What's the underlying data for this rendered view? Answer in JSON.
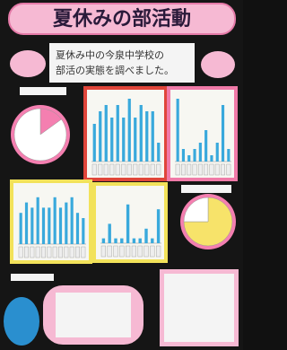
{
  "header": {
    "title": "夏休みの部活動",
    "subtitle_lines": [
      "夏休み中の今泉中学校の",
      "部活の実態を調べました。"
    ]
  },
  "chart_data": [
    {
      "type": "pie",
      "categories": [
        null,
        null
      ],
      "values": [
        15,
        85
      ],
      "colors": [
        "#f47fb0",
        "#ffffff"
      ]
    },
    {
      "type": "bar",
      "categories": [
        null,
        null,
        null,
        null,
        null,
        null,
        null,
        null,
        null,
        null,
        null,
        null
      ],
      "values": [
        6,
        8,
        9,
        7,
        9,
        7,
        10,
        7,
        9,
        8,
        8,
        3
      ],
      "color": "#39a9dc",
      "ylim": [
        0,
        10
      ]
    },
    {
      "type": "bar",
      "categories": [
        null,
        null,
        null,
        null,
        null,
        null,
        null,
        null,
        null,
        null
      ],
      "values": [
        10,
        2,
        1,
        2,
        3,
        5,
        1,
        3,
        9,
        2
      ],
      "color": "#39a9dc",
      "ylim": [
        0,
        10
      ]
    },
    {
      "type": "bar",
      "categories": [
        null,
        null,
        null,
        null,
        null,
        null,
        null,
        null,
        null,
        null,
        null,
        null
      ],
      "values": [
        6,
        8,
        7,
        9,
        7,
        7,
        9,
        7,
        8,
        9,
        6,
        5
      ],
      "color": "#39a9dc",
      "ylim": [
        0,
        10
      ]
    },
    {
      "type": "bar",
      "categories": [
        null,
        null,
        null,
        null,
        null,
        null,
        null,
        null,
        null,
        null
      ],
      "values": [
        1,
        4,
        1,
        1,
        8,
        1,
        1,
        3,
        1,
        7
      ],
      "color": "#39a9dc",
      "ylim": [
        0,
        10
      ]
    },
    {
      "type": "pie",
      "categories": [
        null,
        null
      ],
      "values": [
        75,
        25
      ],
      "colors": [
        "#f7e36a",
        "#ffffff"
      ]
    }
  ]
}
